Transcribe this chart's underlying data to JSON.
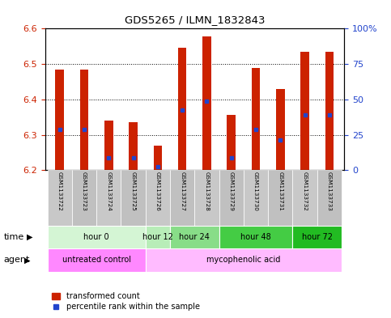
{
  "title": "GDS5265 / ILMN_1832843",
  "samples": [
    "GSM1133722",
    "GSM1133723",
    "GSM1133724",
    "GSM1133725",
    "GSM1133726",
    "GSM1133727",
    "GSM1133728",
    "GSM1133729",
    "GSM1133730",
    "GSM1133731",
    "GSM1133732",
    "GSM1133733"
  ],
  "bar_tops": [
    6.485,
    6.485,
    6.34,
    6.335,
    6.27,
    6.545,
    6.578,
    6.355,
    6.488,
    6.43,
    6.535,
    6.535
  ],
  "bar_base": 6.2,
  "blue_values": [
    6.315,
    6.315,
    6.235,
    6.235,
    6.21,
    6.37,
    6.395,
    6.235,
    6.315,
    6.285,
    6.355,
    6.355
  ],
  "ylim": [
    6.2,
    6.6
  ],
  "yticks_left": [
    6.2,
    6.3,
    6.4,
    6.5,
    6.6
  ],
  "yticks_right": [
    0,
    25,
    50,
    75,
    100
  ],
  "bar_color": "#cc2200",
  "blue_color": "#2244cc",
  "time_groups": [
    {
      "label": "hour 0",
      "start": 0,
      "end": 4,
      "color": "#d4f5d4"
    },
    {
      "label": "hour 12",
      "start": 4,
      "end": 5,
      "color": "#b8edb8"
    },
    {
      "label": "hour 24",
      "start": 5,
      "end": 7,
      "color": "#88dd88"
    },
    {
      "label": "hour 48",
      "start": 7,
      "end": 10,
      "color": "#44cc44"
    },
    {
      "label": "hour 72",
      "start": 10,
      "end": 12,
      "color": "#22bb22"
    }
  ],
  "agent_groups": [
    {
      "label": "untreated control",
      "start": 0,
      "end": 4,
      "color": "#ff88ff"
    },
    {
      "label": "mycophenolic acid",
      "start": 4,
      "end": 12,
      "color": "#ffbbff"
    }
  ],
  "left_axis_color": "#cc2200",
  "right_axis_color": "#2244cc",
  "label_bg": "#c8c8c8",
  "label_alt_bg": "#bbbbbb"
}
